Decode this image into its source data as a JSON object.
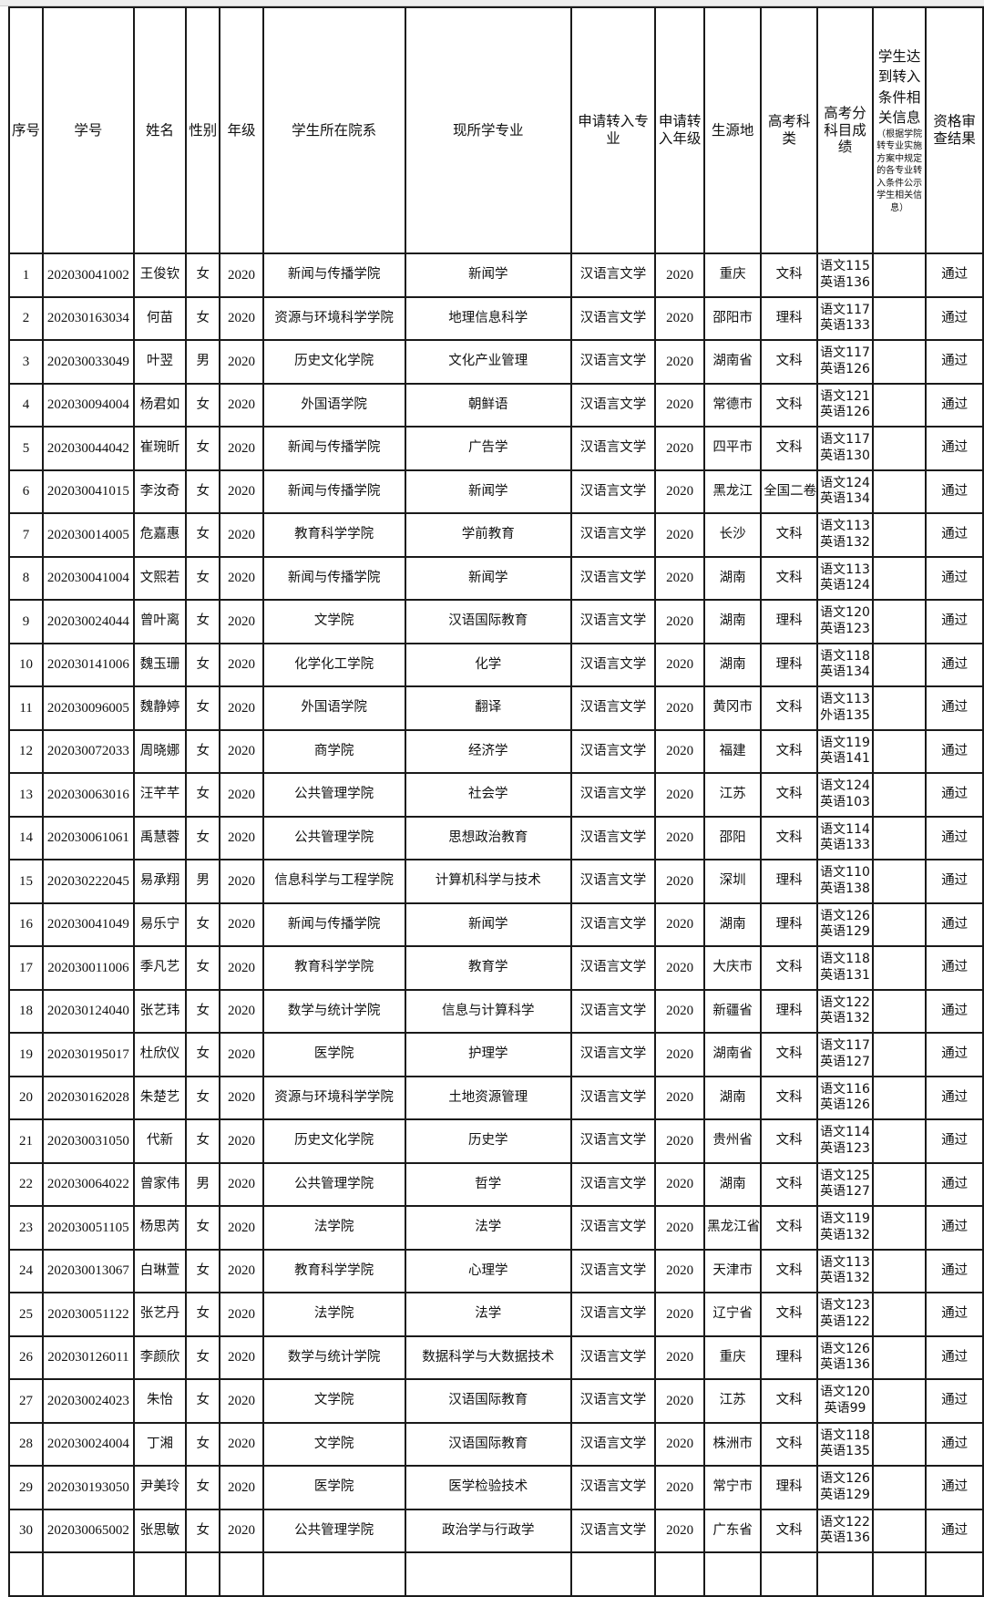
{
  "table": {
    "headers": {
      "seq": "序号",
      "student_id": "学号",
      "name": "姓名",
      "gender": "性别",
      "grade": "年级",
      "college": "学生所在院系",
      "major": "现所学专业",
      "target_major": "申请转入专业",
      "target_grade": "申请转入年级",
      "origin": "生源地",
      "exam_type": "高考科类",
      "scores": "高考分科目成绩",
      "conditions": "学生达到转入条件相关信息",
      "conditions_note": "（根据学院转专业实施方案中规定的各专业转入条件公示学生相关信息）",
      "result": "资格审查结果"
    },
    "rows": [
      [
        "1",
        "202030041002",
        "王俊钦",
        "女",
        "2020",
        "新闻与传播学院",
        "新闻学",
        "汉语言文学",
        "2020",
        "重庆",
        "文科",
        "语文115",
        "英语136",
        "",
        "通过"
      ],
      [
        "2",
        "202030163034",
        "何苗",
        "女",
        "2020",
        "资源与环境科学学院",
        "地理信息科学",
        "汉语言文学",
        "2020",
        "邵阳市",
        "理科",
        "语文117",
        "英语133",
        "",
        "通过"
      ],
      [
        "3",
        "202030033049",
        "叶翌",
        "男",
        "2020",
        "历史文化学院",
        "文化产业管理",
        "汉语言文学",
        "2020",
        "湖南省",
        "文科",
        "语文117",
        "英语126",
        "",
        "通过"
      ],
      [
        "4",
        "202030094004",
        "杨君如",
        "女",
        "2020",
        "外国语学院",
        "朝鲜语",
        "汉语言文学",
        "2020",
        "常德市",
        "文科",
        "语文121",
        "英语126",
        "",
        "通过"
      ],
      [
        "5",
        "202030044042",
        "崔琬昕",
        "女",
        "2020",
        "新闻与传播学院",
        "广告学",
        "汉语言文学",
        "2020",
        "四平市",
        "文科",
        "语文117",
        "英语130",
        "",
        "通过"
      ],
      [
        "6",
        "202030041015",
        "李汝奇",
        "女",
        "2020",
        "新闻与传播学院",
        "新闻学",
        "汉语言文学",
        "2020",
        "黑龙江",
        "全国二卷",
        "语文124",
        "英语134",
        "",
        "通过"
      ],
      [
        "7",
        "202030014005",
        "危嘉惠",
        "女",
        "2020",
        "教育科学学院",
        "学前教育",
        "汉语言文学",
        "2020",
        "长沙",
        "文科",
        "语文113",
        "英语132",
        "",
        "通过"
      ],
      [
        "8",
        "202030041004",
        "文熙若",
        "女",
        "2020",
        "新闻与传播学院",
        "新闻学",
        "汉语言文学",
        "2020",
        "湖南",
        "文科",
        "语文113",
        "英语124",
        "",
        "通过"
      ],
      [
        "9",
        "202030024044",
        "曾叶离",
        "女",
        "2020",
        "文学院",
        "汉语国际教育",
        "汉语言文学",
        "2020",
        "湖南",
        "理科",
        "语文120",
        "英语123",
        "",
        "通过"
      ],
      [
        "10",
        "202030141006",
        "魏玉珊",
        "女",
        "2020",
        "化学化工学院",
        "化学",
        "汉语言文学",
        "2020",
        "湖南",
        "理科",
        "语文118",
        "英语134",
        "",
        "通过"
      ],
      [
        "11",
        "202030096005",
        "魏静婷",
        "女",
        "2020",
        "外国语学院",
        "翻译",
        "汉语言文学",
        "2020",
        "黄冈市",
        "文科",
        "语文113",
        "外语135",
        "",
        "通过"
      ],
      [
        "12",
        "202030072033",
        "周晓娜",
        "女",
        "2020",
        "商学院",
        "经济学",
        "汉语言文学",
        "2020",
        "福建",
        "文科",
        "语文119",
        "英语141",
        "",
        "通过"
      ],
      [
        "13",
        "202030063016",
        "汪芊芊",
        "女",
        "2020",
        "公共管理学院",
        "社会学",
        "汉语言文学",
        "2020",
        "江苏",
        "文科",
        "语文124",
        "英语103",
        "",
        "通过"
      ],
      [
        "14",
        "202030061061",
        "禹慧蓉",
        "女",
        "2020",
        "公共管理学院",
        "思想政治教育",
        "汉语言文学",
        "2020",
        "邵阳",
        "文科",
        "语文114",
        "英语133",
        "",
        "通过"
      ],
      [
        "15",
        "202030222045",
        "易承翔",
        "男",
        "2020",
        "信息科学与工程学院",
        "计算机科学与技术",
        "汉语言文学",
        "2020",
        "深圳",
        "理科",
        "语文110",
        "英语138",
        "",
        "通过"
      ],
      [
        "16",
        "202030041049",
        "易乐宁",
        "女",
        "2020",
        "新闻与传播学院",
        "新闻学",
        "汉语言文学",
        "2020",
        "湖南",
        "理科",
        "语文126",
        "英语129",
        "",
        "通过"
      ],
      [
        "17",
        "202030011006",
        "季凡艺",
        "女",
        "2020",
        "教育科学学院",
        "教育学",
        "汉语言文学",
        "2020",
        "大庆市",
        "文科",
        "语文118",
        "英语131",
        "",
        "通过"
      ],
      [
        "18",
        "202030124040",
        "张艺玮",
        "女",
        "2020",
        "数学与统计学院",
        "信息与计算科学",
        "汉语言文学",
        "2020",
        "新疆省",
        "理科",
        "语文122",
        "英语132",
        "",
        "通过"
      ],
      [
        "19",
        "202030195017",
        "杜欣仪",
        "女",
        "2020",
        "医学院",
        "护理学",
        "汉语言文学",
        "2020",
        "湖南省",
        "文科",
        "语文117",
        "英语127",
        "",
        "通过"
      ],
      [
        "20",
        "202030162028",
        "朱楚艺",
        "女",
        "2020",
        "资源与环境科学学院",
        "土地资源管理",
        "汉语言文学",
        "2020",
        "湖南",
        "文科",
        "语文116",
        "英语126",
        "",
        "通过"
      ],
      [
        "21",
        "202030031050",
        "代新",
        "女",
        "2020",
        "历史文化学院",
        "历史学",
        "汉语言文学",
        "2020",
        "贵州省",
        "文科",
        "语文114",
        "英语123",
        "",
        "通过"
      ],
      [
        "22",
        "202030064022",
        "曾家伟",
        "男",
        "2020",
        "公共管理学院",
        "哲学",
        "汉语言文学",
        "2020",
        "湖南",
        "文科",
        "语文125",
        "英语127",
        "",
        "通过"
      ],
      [
        "23",
        "202030051105",
        "杨思芮",
        "女",
        "2020",
        "法学院",
        "法学",
        "汉语言文学",
        "2020",
        "黑龙江省",
        "文科",
        "语文119",
        "英语132",
        "",
        "通过"
      ],
      [
        "24",
        "202030013067",
        "白琳萱",
        "女",
        "2020",
        "教育科学学院",
        "心理学",
        "汉语言文学",
        "2020",
        "天津市",
        "文科",
        "语文113",
        "英语132",
        "",
        "通过"
      ],
      [
        "25",
        "202030051122",
        "张艺丹",
        "女",
        "2020",
        "法学院",
        "法学",
        "汉语言文学",
        "2020",
        "辽宁省",
        "文科",
        "语文123",
        "英语122",
        "",
        "通过"
      ],
      [
        "26",
        "202030126011",
        "李颜欣",
        "女",
        "2020",
        "数学与统计学院",
        "数据科学与大数据技术",
        "汉语言文学",
        "2020",
        "重庆",
        "理科",
        "语文126",
        "英语136",
        "",
        "通过"
      ],
      [
        "27",
        "202030024023",
        "朱怡",
        "女",
        "2020",
        "文学院",
        "汉语国际教育",
        "汉语言文学",
        "2020",
        "江苏",
        "文科",
        "语文120",
        "英语99",
        "",
        "通过"
      ],
      [
        "28",
        "202030024004",
        "丁湘",
        "女",
        "2020",
        "文学院",
        "汉语国际教育",
        "汉语言文学",
        "2020",
        "株洲市",
        "文科",
        "语文118",
        "英语135",
        "",
        "通过"
      ],
      [
        "29",
        "202030193050",
        "尹美玲",
        "女",
        "2020",
        "医学院",
        "医学检验技术",
        "汉语言文学",
        "2020",
        "常宁市",
        "理科",
        "语文126",
        "英语129",
        "",
        "通过"
      ],
      [
        "30",
        "202030065002",
        "张思敏",
        "女",
        "2020",
        "公共管理学院",
        "政治学与行政学",
        "汉语言文学",
        "2020",
        "广东省",
        "文科",
        "语文122",
        "英语136",
        "",
        "通过"
      ]
    ]
  }
}
